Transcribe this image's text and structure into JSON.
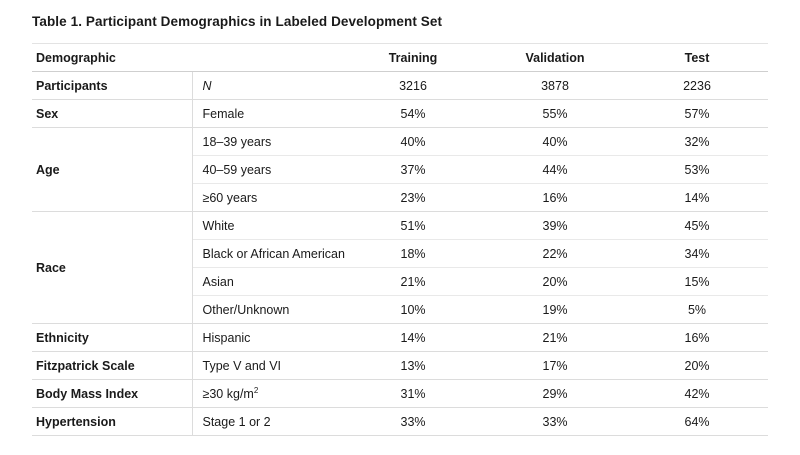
{
  "title": "Table 1. Participant Demographics in Labeled Development Set",
  "headers": {
    "demographic": "Demographic",
    "training": "Training",
    "validation": "Validation",
    "test": "Test"
  },
  "groups": [
    {
      "label": "Participants",
      "rows": [
        {
          "sub": "N",
          "training": "3216",
          "validation": "3878",
          "test": "2236"
        }
      ]
    },
    {
      "label": "Sex",
      "rows": [
        {
          "sub": "Female",
          "training": "54%",
          "validation": "55%",
          "test": "57%"
        }
      ]
    },
    {
      "label": "Age",
      "rows": [
        {
          "sub": "18–39 years",
          "training": "40%",
          "validation": "40%",
          "test": "32%"
        },
        {
          "sub": "40–59 years",
          "training": "37%",
          "validation": "44%",
          "test": "53%"
        },
        {
          "sub": "≥60 years",
          "training": "23%",
          "validation": "16%",
          "test": "14%"
        }
      ]
    },
    {
      "label": "Race",
      "rows": [
        {
          "sub": "White",
          "training": "51%",
          "validation": "39%",
          "test": "45%"
        },
        {
          "sub": "Black or African American",
          "training": "18%",
          "validation": "22%",
          "test": "34%"
        },
        {
          "sub": "Asian",
          "training": "21%",
          "validation": "20%",
          "test": "15%"
        },
        {
          "sub": "Other/Unknown",
          "training": "10%",
          "validation": "19%",
          "test": "5%"
        }
      ]
    },
    {
      "label": "Ethnicity",
      "rows": [
        {
          "sub": "Hispanic",
          "training": "14%",
          "validation": "21%",
          "test": "16%"
        }
      ]
    },
    {
      "label": "Fitzpatrick Scale",
      "rows": [
        {
          "sub": "Type V and VI",
          "training": "13%",
          "validation": "17%",
          "test": "20%"
        }
      ]
    },
    {
      "label": "Body Mass Index",
      "rows": [
        {
          "sub": "≥30 kg/m",
          "sub_sup": "2",
          "training": "31%",
          "validation": "29%",
          "test": "42%"
        }
      ]
    },
    {
      "label": "Hypertension",
      "rows": [
        {
          "sub": "Stage 1 or 2",
          "training": "33%",
          "validation": "33%",
          "test": "64%"
        }
      ]
    }
  ]
}
